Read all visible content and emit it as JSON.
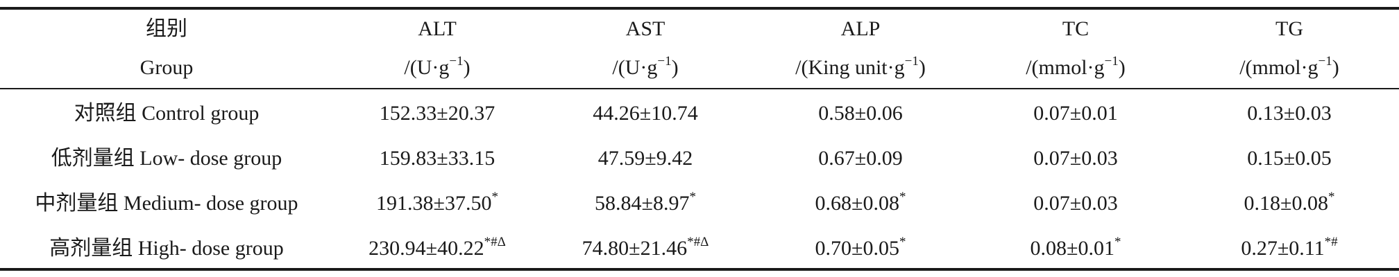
{
  "header": {
    "row1": [
      "组别",
      "ALT",
      "AST",
      "ALP",
      "TC",
      "TG"
    ],
    "row2_group": "Group",
    "units": [
      {
        "pre": "/(U·g",
        "exp": "−1",
        "post": ")"
      },
      {
        "pre": "/(U·g",
        "exp": "−1",
        "post": ")"
      },
      {
        "pre": "/(King unit·g",
        "exp": "−1",
        "post": ")"
      },
      {
        "pre": "/(mmol·g",
        "exp": "−1",
        "post": ")"
      },
      {
        "pre": "/(mmol·g",
        "exp": "−1",
        "post": ")"
      }
    ]
  },
  "rows": [
    {
      "group": "对照组 Control group",
      "cells": [
        {
          "value": "152.33±20.37",
          "mark": ""
        },
        {
          "value": "44.26±10.74",
          "mark": ""
        },
        {
          "value": "0.58±0.06",
          "mark": ""
        },
        {
          "value": "0.07±0.01",
          "mark": ""
        },
        {
          "value": "0.13±0.03",
          "mark": ""
        }
      ]
    },
    {
      "group": "低剂量组 Low- dose group",
      "cells": [
        {
          "value": "159.83±33.15",
          "mark": ""
        },
        {
          "value": "47.59±9.42",
          "mark": ""
        },
        {
          "value": "0.67±0.09",
          "mark": ""
        },
        {
          "value": "0.07±0.03",
          "mark": ""
        },
        {
          "value": "0.15±0.05",
          "mark": ""
        }
      ]
    },
    {
      "group": "中剂量组 Medium- dose group",
      "cells": [
        {
          "value": "191.38±37.50",
          "mark": "*"
        },
        {
          "value": "58.84±8.97",
          "mark": "*"
        },
        {
          "value": "0.68±0.08",
          "mark": "*"
        },
        {
          "value": "0.07±0.03",
          "mark": ""
        },
        {
          "value": "0.18±0.08",
          "mark": "*"
        }
      ]
    },
    {
      "group": "高剂量组 High- dose group",
      "cells": [
        {
          "value": "230.94±40.22",
          "mark": "*#Δ"
        },
        {
          "value": "74.80±21.46",
          "mark": "*#Δ"
        },
        {
          "value": "0.70±0.05",
          "mark": "*"
        },
        {
          "value": "0.08±0.01",
          "mark": "*"
        },
        {
          "value": "0.27±0.11",
          "mark": "*#"
        }
      ]
    }
  ]
}
